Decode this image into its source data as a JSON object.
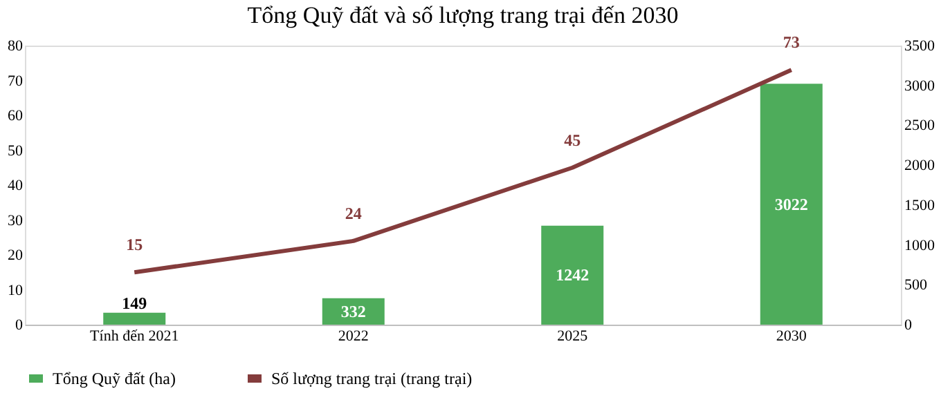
{
  "chart_data": {
    "type": "bar",
    "title": "Tổng Quỹ đất và số lượng trang trại đến 2030",
    "categories": [
      "Tính đến 2021",
      "2022",
      "2025",
      "2030"
    ],
    "series": [
      {
        "name": "Tổng Quỹ đất (ha)",
        "axis": "y2",
        "color": "#4eac5b",
        "values": [
          149,
          332,
          1242,
          3022
        ]
      },
      {
        "name": "Số lượng trang trại (trang trại)",
        "type": "line",
        "color": "#843c3c",
        "values": [
          15,
          24,
          45,
          73
        ]
      }
    ],
    "ylim": [
      0,
      80
    ],
    "yticks": [
      0,
      10,
      20,
      30,
      40,
      50,
      60,
      70,
      80
    ],
    "y2lim": [
      0,
      3500
    ],
    "y2ticks": [
      0,
      500,
      1000,
      1500,
      2000,
      2500,
      3000,
      3500
    ],
    "data_labels": true,
    "grid": false,
    "legend": "bottom"
  }
}
